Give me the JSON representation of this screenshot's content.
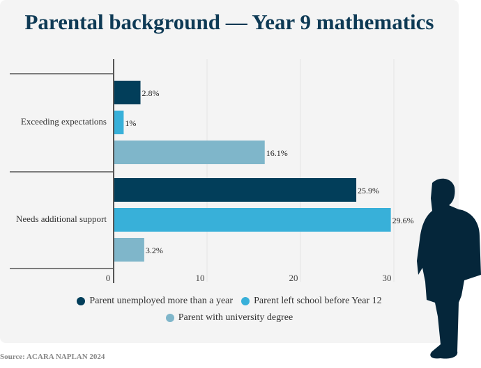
{
  "chart_data": {
    "type": "bar",
    "orientation": "horizontal",
    "title": "Parental background — Year 9 mathematics",
    "categories": [
      "Exceeding expectations",
      "Needs additional support"
    ],
    "series": [
      {
        "name": "Parent unemployed more than a year",
        "color": "#023e5a",
        "values": [
          2.8,
          25.9
        ],
        "labels": [
          "2.8%",
          "25.9%"
        ]
      },
      {
        "name": "Parent left school before Year 12",
        "color": "#38b0d9",
        "values": [
          1,
          29.6
        ],
        "labels": [
          "1%",
          "29.6%"
        ]
      },
      {
        "name": "Parent with university degree",
        "color": "#7fb6ca",
        "values": [
          16.1,
          3.2
        ],
        "labels": [
          "16.1%",
          "3.2%"
        ]
      }
    ],
    "xticks": [
      "0",
      "10",
      "20",
      "30"
    ],
    "xlim": [
      0,
      30
    ],
    "grid": true,
    "legend": "bottom"
  },
  "source": "Source: ACARA NAPLAN 2024"
}
